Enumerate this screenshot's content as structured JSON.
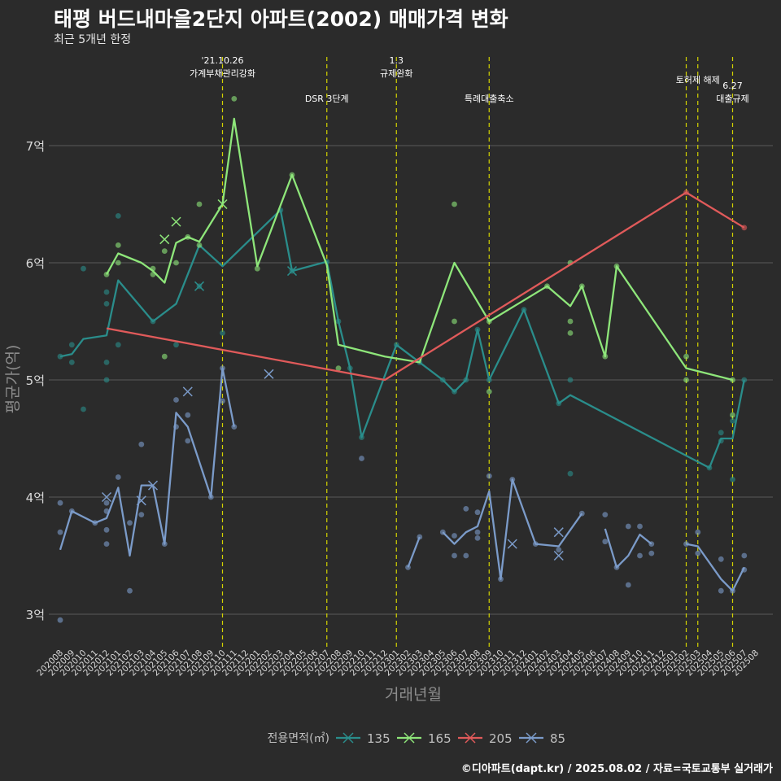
{
  "chart_data": {
    "type": "line",
    "title": "태평 버드내마을2단지 아파트(2002) 매매가격 변화",
    "subtitle": "최근 5개년 한정",
    "xlabel": "거래년월",
    "ylabel": "평균가(억)",
    "caption": "©디아파트(dapt.kr) / 2025.08.02 / 자료=국토교통부 실거래가",
    "ylim": [
      2.7,
      8.2
    ],
    "yticks": [
      3,
      4,
      5,
      6,
      7
    ],
    "ytick_labels": [
      "3억",
      "4억",
      "5억",
      "6억",
      "7억"
    ],
    "grid": true,
    "legend": {
      "title": "전용면적(㎡)",
      "position": "bottom"
    },
    "x_categories": [
      "202008",
      "202009",
      "202010",
      "202011",
      "202012",
      "202101",
      "202102",
      "202103",
      "202104",
      "202105",
      "202106",
      "202107",
      "202108",
      "202109",
      "202110",
      "202111",
      "202112",
      "202201",
      "202202",
      "202203",
      "202204",
      "202205",
      "202206",
      "202207",
      "202208",
      "202209",
      "202210",
      "202211",
      "202212",
      "202301",
      "202302",
      "202303",
      "202304",
      "202305",
      "202306",
      "202307",
      "202308",
      "202309",
      "202310",
      "202311",
      "202312",
      "202401",
      "202402",
      "202403",
      "202404",
      "202405",
      "202406",
      "202407",
      "202408",
      "202409",
      "202410",
      "202411",
      "202412",
      "202501",
      "202502",
      "202503",
      "202504",
      "202505",
      "202506",
      "202507",
      "202508"
    ],
    "annotations": [
      {
        "x": "202110",
        "text": [
          "'21.10.26",
          "가계부채관리강화"
        ],
        "row": 0
      },
      {
        "x": "202207",
        "text": [
          "DSR 3단계"
        ],
        "row": 1
      },
      {
        "x": "202301",
        "text": [
          "1.3",
          "규제완화"
        ],
        "row": 0
      },
      {
        "x": "202309",
        "text": [
          "특례대출축소"
        ],
        "row": 1
      },
      {
        "x": "202502",
        "text": [],
        "row": 0
      },
      {
        "x": "202503",
        "text": [
          "토허제 해제"
        ],
        "row": 0
      },
      {
        "x": "202506",
        "text": [
          "6.27",
          "대출규제"
        ],
        "row": 1
      }
    ],
    "series": [
      {
        "name": "135",
        "color": "#2a8d8b",
        "line": [
          [
            "202008",
            5.2
          ],
          [
            "202009",
            5.22
          ],
          [
            "202010",
            5.35
          ],
          [
            "202012",
            5.38
          ],
          [
            "202101",
            5.85
          ],
          [
            "202104",
            5.5
          ],
          [
            "202106",
            5.65
          ],
          [
            "202108",
            6.15
          ],
          [
            "202110",
            5.97
          ],
          [
            "202203",
            6.45
          ],
          [
            "202204",
            5.93
          ],
          [
            "202207",
            6.01
          ],
          [
            "202208",
            5.5
          ],
          [
            "202209",
            5.1
          ],
          [
            "202210",
            4.51
          ],
          [
            "202301",
            5.3
          ],
          [
            "202303",
            5.15
          ],
          [
            "202305",
            5.0
          ],
          [
            "202306",
            4.9
          ],
          [
            "202307",
            5.0
          ],
          [
            "202308",
            5.43
          ],
          [
            "202309",
            5.0
          ],
          [
            "202312",
            5.6
          ],
          [
            "202403",
            4.8
          ],
          [
            "202404",
            4.87
          ],
          [
            "202504",
            4.25
          ],
          [
            "202505",
            4.5
          ],
          [
            "202506",
            4.5
          ],
          [
            "202507",
            5.0
          ]
        ],
        "points": [
          [
            5.2,
            "202008"
          ],
          [
            5.3,
            "202009"
          ],
          [
            5.15,
            "202009"
          ],
          [
            5.95,
            "202010"
          ],
          [
            4.75,
            "202010"
          ],
          [
            5.75,
            "202012"
          ],
          [
            5.65,
            "202012"
          ],
          [
            5.15,
            "202012"
          ],
          [
            5.0,
            "202012"
          ],
          [
            6.4,
            "202101"
          ],
          [
            5.3,
            "202101"
          ],
          [
            5.5,
            "202104"
          ],
          [
            5.3,
            "202106"
          ],
          [
            5.8,
            "202108"
          ],
          [
            5.4,
            "202110"
          ],
          [
            6.45,
            "202203"
          ],
          [
            5.93,
            "202204"
          ],
          [
            6.01,
            "202207"
          ],
          [
            5.5,
            "202208"
          ],
          [
            5.1,
            "202209"
          ],
          [
            4.51,
            "202210"
          ],
          [
            5.3,
            "202301"
          ],
          [
            5.15,
            "202303"
          ],
          [
            5.0,
            "202305"
          ],
          [
            4.9,
            "202306"
          ],
          [
            5.0,
            "202307"
          ],
          [
            5.43,
            "202308"
          ],
          [
            5.0,
            "202309"
          ],
          [
            5.6,
            "202312"
          ],
          [
            4.8,
            "202403"
          ],
          [
            5.0,
            "202404"
          ],
          [
            4.2,
            "202404"
          ],
          [
            4.25,
            "202504"
          ],
          [
            4.55,
            "202505"
          ],
          [
            4.48,
            "202505"
          ],
          [
            4.65,
            "202506"
          ],
          [
            4.15,
            "202506"
          ],
          [
            5.0,
            "202507"
          ]
        ],
        "crosses": [
          [
            5.8,
            "202108"
          ],
          [
            5.93,
            "202204"
          ]
        ]
      },
      {
        "name": "165",
        "color": "#8ee67a",
        "line": [
          [
            "202012",
            5.9
          ],
          [
            "202101",
            6.08
          ],
          [
            "202103",
            6.0
          ],
          [
            "202104",
            5.93
          ],
          [
            "202105",
            5.83
          ],
          [
            "202106",
            6.17
          ],
          [
            "202107",
            6.22
          ],
          [
            "202108",
            6.18
          ],
          [
            "202110",
            6.5
          ],
          [
            "202111",
            7.23
          ],
          [
            "202201",
            5.97
          ],
          [
            "202204",
            6.75
          ],
          [
            "202207",
            5.98
          ],
          [
            "202208",
            5.3
          ],
          [
            "202212",
            5.2
          ],
          [
            "202303",
            5.15
          ],
          [
            "202306",
            6.0
          ],
          [
            "202309",
            5.5
          ],
          [
            "202402",
            5.8
          ],
          [
            "202404",
            5.63
          ],
          [
            "202405",
            5.8
          ],
          [
            "202407",
            5.2
          ],
          [
            "202408",
            5.97
          ],
          [
            "202502",
            5.1
          ],
          [
            "202506",
            5.0
          ]
        ],
        "points": [
          [
            5.9,
            "202012"
          ],
          [
            6.15,
            "202101"
          ],
          [
            6.0,
            "202101"
          ],
          [
            5.95,
            "202104"
          ],
          [
            5.9,
            "202104"
          ],
          [
            5.2,
            "202105"
          ],
          [
            6.1,
            "202105"
          ],
          [
            6.0,
            "202106"
          ],
          [
            6.22,
            "202107"
          ],
          [
            6.5,
            "202108"
          ],
          [
            6.15,
            "202108"
          ],
          [
            7.4,
            "202111"
          ],
          [
            5.95,
            "202201"
          ],
          [
            6.75,
            "202204"
          ],
          [
            5.1,
            "202208"
          ],
          [
            6.5,
            "202306"
          ],
          [
            5.5,
            "202306"
          ],
          [
            5.5,
            "202309"
          ],
          [
            4.9,
            "202309"
          ],
          [
            5.8,
            "202402"
          ],
          [
            6.0,
            "202404"
          ],
          [
            5.5,
            "202404"
          ],
          [
            5.4,
            "202404"
          ],
          [
            5.8,
            "202405"
          ],
          [
            5.2,
            "202407"
          ],
          [
            5.97,
            "202408"
          ],
          [
            5.2,
            "202502"
          ],
          [
            5.0,
            "202502"
          ],
          [
            5.0,
            "202506"
          ],
          [
            4.7,
            "202506"
          ]
        ],
        "crosses": [
          [
            6.2,
            "202105"
          ],
          [
            6.35,
            "202106"
          ],
          [
            6.5,
            "202110"
          ]
        ]
      },
      {
        "name": "205",
        "color": "#e05a5a",
        "line": [
          [
            "202012",
            5.44
          ],
          [
            "202212",
            5.0
          ],
          [
            "202502",
            6.6
          ],
          [
            "202507",
            6.3
          ]
        ],
        "points": [
          [
            6.6,
            "202502"
          ],
          [
            6.3,
            "202507"
          ]
        ],
        "crosses": []
      },
      {
        "name": "85",
        "color": "#7b9bc9",
        "line_segments": [
          [
            [
              "202008",
              3.55
            ],
            [
              "202009",
              3.88
            ],
            [
              "202011",
              3.78
            ],
            [
              "202012",
              3.82
            ],
            [
              "202101",
              4.08
            ],
            [
              "202102",
              3.5
            ],
            [
              "202103",
              4.1
            ],
            [
              "202104",
              4.1
            ],
            [
              "202105",
              3.6
            ],
            [
              "202106",
              4.72
            ],
            [
              "202107",
              4.6
            ],
            [
              "202109",
              4.0
            ],
            [
              "202110",
              5.1
            ],
            [
              "202111",
              4.6
            ]
          ],
          [
            [
              "202302",
              3.4
            ],
            [
              "202303",
              3.66
            ]
          ],
          [
            [
              "202305",
              3.7
            ],
            [
              "202306",
              3.6
            ],
            [
              "202307",
              3.7
            ],
            [
              "202308",
              3.75
            ],
            [
              "202309",
              4.05
            ],
            [
              "202310",
              3.3
            ],
            [
              "202311",
              4.15
            ],
            [
              "202401",
              3.6
            ],
            [
              "202403",
              3.58
            ],
            [
              "202405",
              3.86
            ]
          ],
          [
            [
              "202407",
              3.73
            ],
            [
              "202408",
              3.4
            ],
            [
              "202409",
              3.5
            ],
            [
              "202410",
              3.68
            ],
            [
              "202411",
              3.6
            ]
          ],
          [
            [
              "202502",
              3.6
            ],
            [
              "202503",
              3.58
            ],
            [
              "202505",
              3.3
            ],
            [
              "202506",
              3.2
            ],
            [
              "202507",
              3.4
            ]
          ]
        ],
        "points": [
          [
            3.95,
            "202008"
          ],
          [
            3.7,
            "202008"
          ],
          [
            2.95,
            "202008"
          ],
          [
            3.88,
            "202009"
          ],
          [
            3.78,
            "202011"
          ],
          [
            3.95,
            "202012"
          ],
          [
            3.72,
            "202012"
          ],
          [
            3.6,
            "202012"
          ],
          [
            3.88,
            "202012"
          ],
          [
            4.17,
            "202101"
          ],
          [
            3.78,
            "202102"
          ],
          [
            3.2,
            "202102"
          ],
          [
            4.45,
            "202103"
          ],
          [
            3.85,
            "202103"
          ],
          [
            3.6,
            "202105"
          ],
          [
            4.83,
            "202106"
          ],
          [
            4.6,
            "202106"
          ],
          [
            4.7,
            "202107"
          ],
          [
            4.48,
            "202107"
          ],
          [
            4.0,
            "202109"
          ],
          [
            5.1,
            "202110"
          ],
          [
            4.82,
            "202110"
          ],
          [
            4.6,
            "202111"
          ],
          [
            4.33,
            "202210"
          ],
          [
            3.4,
            "202302"
          ],
          [
            3.66,
            "202303"
          ],
          [
            3.7,
            "202305"
          ],
          [
            3.67,
            "202306"
          ],
          [
            3.5,
            "202306"
          ],
          [
            3.9,
            "202307"
          ],
          [
            3.5,
            "202307"
          ],
          [
            3.87,
            "202308"
          ],
          [
            3.7,
            "202308"
          ],
          [
            3.65,
            "202308"
          ],
          [
            4.18,
            "202309"
          ],
          [
            3.3,
            "202310"
          ],
          [
            4.15,
            "202311"
          ],
          [
            3.6,
            "202401"
          ],
          [
            3.55,
            "202403"
          ],
          [
            3.86,
            "202405"
          ],
          [
            3.85,
            "202407"
          ],
          [
            3.62,
            "202407"
          ],
          [
            3.4,
            "202408"
          ],
          [
            3.25,
            "202409"
          ],
          [
            3.75,
            "202409"
          ],
          [
            3.75,
            "202410"
          ],
          [
            3.5,
            "202410"
          ],
          [
            3.6,
            "202411"
          ],
          [
            3.52,
            "202411"
          ],
          [
            3.6,
            "202502"
          ],
          [
            3.7,
            "202503"
          ],
          [
            3.52,
            "202503"
          ],
          [
            3.47,
            "202505"
          ],
          [
            3.2,
            "202505"
          ],
          [
            3.2,
            "202506"
          ],
          [
            3.5,
            "202507"
          ],
          [
            3.38,
            "202507"
          ]
        ],
        "crosses": [
          [
            4.0,
            "202012"
          ],
          [
            3.97,
            "202103"
          ],
          [
            4.1,
            "202104"
          ],
          [
            4.9,
            "202107"
          ],
          [
            5.05,
            "202202"
          ],
          [
            3.6,
            "202311"
          ],
          [
            3.7,
            "202403"
          ],
          [
            3.5,
            "202403"
          ]
        ]
      }
    ]
  }
}
